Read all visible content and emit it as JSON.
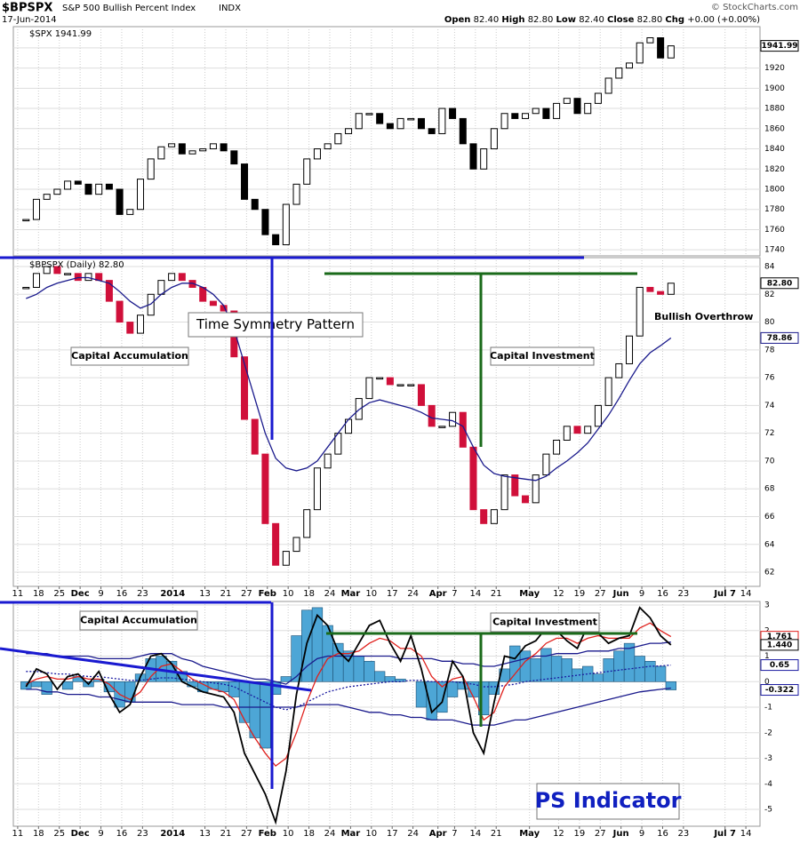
{
  "chart_data": {
    "type": "candlestick",
    "title": "$BPSPX",
    "subtitle": "S&P 500 Bullish Percent Index",
    "exchange": "INDX",
    "date": "17-Jun-2014",
    "source": "© StockCharts.com",
    "quote": [
      {
        "label": "Open",
        "value": "82.40"
      },
      {
        "label": "High",
        "value": "82.80"
      },
      {
        "label": "Low",
        "value": "82.40"
      },
      {
        "label": "Close",
        "value": "82.80"
      },
      {
        "label": "Chg",
        "value": "+0.00 (+0.00%)"
      }
    ],
    "x": [
      0.4,
      0.9,
      1.4,
      1.9,
      2.4,
      2.9,
      3.4,
      3.9,
      4.4,
      4.9,
      5.4,
      5.9,
      6.4,
      6.9,
      7.4,
      7.9,
      8.4,
      8.9,
      9.4,
      9.9,
      10.4,
      10.9,
      11.4,
      11.9,
      12.4,
      12.9,
      13.4,
      13.9,
      14.4,
      14.9,
      15.4,
      15.9,
      16.4,
      16.9,
      17.4,
      17.9,
      18.4,
      18.9,
      19.4,
      19.9,
      20.4,
      20.9,
      21.4,
      21.9,
      22.4,
      22.9,
      23.4,
      23.9,
      24.4,
      24.9,
      25.4,
      25.9,
      26.4,
      26.9,
      27.4,
      27.9,
      28.4,
      28.9,
      29.4,
      29.9,
      30.4,
      30.9,
      31.4
    ],
    "xlim": [
      -0.21,
      35.68
    ],
    "xticks": [
      {
        "value": 0,
        "label": "11"
      },
      {
        "value": 1,
        "label": "18"
      },
      {
        "value": 2,
        "label": "25"
      },
      {
        "value": 3,
        "label": "Dec"
      },
      {
        "value": 4,
        "label": "9"
      },
      {
        "value": 5,
        "label": "16"
      },
      {
        "value": 6,
        "label": "23"
      },
      {
        "value": 7.45,
        "label": "2014"
      },
      {
        "value": 9,
        "label": "13"
      },
      {
        "value": 10,
        "label": "21"
      },
      {
        "value": 11,
        "label": "27"
      },
      {
        "value": 12,
        "label": "Feb"
      },
      {
        "value": 13,
        "label": "10"
      },
      {
        "value": 14,
        "label": "18"
      },
      {
        "value": 15,
        "label": "24"
      },
      {
        "value": 16,
        "label": "Mar"
      },
      {
        "value": 17,
        "label": "10"
      },
      {
        "value": 18,
        "label": "17"
      },
      {
        "value": 19,
        "label": "24"
      },
      {
        "value": 20.2,
        "label": "Apr"
      },
      {
        "value": 21,
        "label": "7"
      },
      {
        "value": 22,
        "label": "14"
      },
      {
        "value": 23,
        "label": "21"
      },
      {
        "value": 24.6,
        "label": "May"
      },
      {
        "value": 26,
        "label": "12"
      },
      {
        "value": 27,
        "label": "19"
      },
      {
        "value": 28,
        "label": "27"
      },
      {
        "value": 29,
        "label": "Jun"
      },
      {
        "value": 30,
        "label": "9"
      },
      {
        "value": 31,
        "label": "16"
      },
      {
        "value": 32,
        "label": "23"
      },
      {
        "value": 34,
        "label": "Jul 7"
      },
      {
        "value": 35,
        "label": "14"
      }
    ],
    "panels": [
      {
        "ylim": [
          1734,
          1961
        ],
        "yticks": [
          1740,
          1760,
          1780,
          1800,
          1820,
          1840,
          1860,
          1880,
          1900,
          1920,
          1940
        ],
        "grid": true,
        "series": [
          {
            "name": "$SPX 1941.99",
            "type": "candle",
            "color": "#000000",
            "down_color": "#000000",
            "tag": true,
            "values": [
              1770,
              1790,
              1795,
              1800,
              1808,
              1805,
              1795,
              1805,
              1800,
              1775,
              1780,
              1810,
              1830,
              1842,
              1845,
              1835,
              1838,
              1840,
              1845,
              1838,
              1825,
              1790,
              1780,
              1755,
              1745,
              1785,
              1805,
              1830,
              1840,
              1845,
              1855,
              1860,
              1875,
              1875,
              1865,
              1860,
              1870,
              1870,
              1860,
              1855,
              1880,
              1870,
              1845,
              1820,
              1840,
              1860,
              1875,
              1870,
              1875,
              1880,
              1870,
              1885,
              1890,
              1875,
              1885,
              1895,
              1910,
              1920,
              1925,
              1945,
              1950,
              1930,
              1941.99
            ]
          }
        ]
      },
      {
        "ylim": [
          60.98,
          84.64
        ],
        "yticks": [
          62,
          64,
          66,
          68,
          70,
          72,
          74,
          76,
          78,
          80,
          82,
          84
        ],
        "grid": true,
        "annotations": [
          "Capital Accumulation",
          "Time Symmetry Pattern",
          "Capital Investment",
          "Bullish Overthrow"
        ],
        "series": [
          {
            "name": "$BPSPX (Daily) 82.80",
            "type": "candle",
            "color": "#000000",
            "down_color": "#d0103a",
            "tag": true,
            "tag_label": "82.80",
            "values": [
              82.5,
              83.5,
              84,
              83.5,
              83.5,
              83,
              83.5,
              83,
              81.5,
              80,
              79.2,
              80.5,
              82,
              83,
              83.5,
              83,
              82.5,
              81.5,
              81.2,
              80.8,
              77.5,
              73,
              70.5,
              65.5,
              62.5,
              63.5,
              64.5,
              66.5,
              69.5,
              70.5,
              72,
              73,
              74.5,
              76,
              76,
              75.5,
              75.5,
              75.5,
              74,
              72.5,
              72.5,
              73.5,
              71,
              66.5,
              65.5,
              66.5,
              69,
              67.5,
              67,
              69,
              70.5,
              71.5,
              72.5,
              72,
              72.5,
              74,
              76,
              77,
              79,
              82.5,
              82.2,
              82,
              82.8
            ]
          },
          {
            "type": "line",
            "color": "#1a1a8c",
            "tag": true,
            "values": [
              81.7,
              82,
              82.5,
              82.8,
              83,
              83.2,
              83.2,
              83,
              82.8,
              82.2,
              81.5,
              81,
              81.3,
              82,
              82.5,
              82.8,
              82.8,
              82.5,
              82,
              81.2,
              79.5,
              77,
              74.5,
              72,
              70.2,
              69.5,
              69.3,
              69.5,
              70,
              71,
              72,
              73,
              73.7,
              74.2,
              74.4,
              74.2,
              74,
              73.8,
              73.5,
              73.1,
              73,
              72.9,
              72.5,
              71,
              69.7,
              69.1,
              68.9,
              68.8,
              68.7,
              68.6,
              68.9,
              69.5,
              70,
              70.6,
              71.3,
              72.3,
              73.3,
              74.5,
              75.8,
              77,
              77.8,
              78.3,
              78.86
            ]
          }
        ]
      },
      {
        "ylim": [
          -5.66,
          3.14
        ],
        "yticks": [
          -5,
          -4,
          -3,
          -2,
          -1,
          0,
          1,
          2,
          3
        ],
        "grid": true,
        "annotations": [
          "Capital Accumulation",
          "Capital Investment",
          "PS Indicator"
        ],
        "series": [
          {
            "type": "bar",
            "color": "#4da6d6",
            "tag": true,
            "values": [
              -0.3,
              -0.2,
              -0.5,
              0,
              -0.3,
              0.2,
              -0.2,
              0.1,
              -0.4,
              -1.0,
              -0.8,
              0.3,
              0.9,
              1.0,
              0.8,
              0.4,
              -0.2,
              -0.4,
              -0.3,
              -0.4,
              -0.6,
              -1.6,
              -2.2,
              -2.6,
              -0.5,
              0.2,
              1.8,
              2.8,
              2.9,
              2.2,
              1.5,
              1.2,
              1.0,
              0.8,
              0.4,
              0.2,
              0.1,
              0,
              -1.0,
              -1.5,
              -1.2,
              -0.6,
              -0.3,
              -0.6,
              -1.3,
              -0.5,
              0.5,
              1.4,
              1.2,
              0.9,
              1.3,
              1.0,
              0.9,
              0.5,
              0.6,
              0.3,
              0.9,
              1.2,
              1.5,
              1.0,
              0.8,
              0.6,
              -0.322
            ]
          },
          {
            "type": "line",
            "color": "#1a1a8c",
            "values": [
              1.1,
              1.1,
              1.1,
              1.0,
              1.0,
              1.0,
              1.0,
              0.9,
              0.9,
              0.9,
              0.9,
              1.0,
              1.1,
              1.1,
              1.1,
              0.9,
              0.8,
              0.6,
              0.5,
              0.4,
              0.3,
              0.2,
              0.1,
              0.1,
              0,
              -0.1,
              0.2,
              0.6,
              0.9,
              1.0,
              1.0,
              1.0,
              1.0,
              1.0,
              1.0,
              1.0,
              0.9,
              0.9,
              0.9,
              0.9,
              0.8,
              0.8,
              0.7,
              0.7,
              0.6,
              0.6,
              0.7,
              0.8,
              0.9,
              1.0,
              1.0,
              1.1,
              1.1,
              1.1,
              1.2,
              1.2,
              1.2,
              1.3,
              1.3,
              1.4,
              1.5,
              1.5,
              1.55
            ]
          },
          {
            "type": "line",
            "color": "#1a1a8c",
            "values": [
              -0.3,
              -0.3,
              -0.4,
              -0.4,
              -0.5,
              -0.5,
              -0.5,
              -0.6,
              -0.6,
              -0.7,
              -0.8,
              -0.8,
              -0.8,
              -0.8,
              -0.8,
              -0.9,
              -0.9,
              -0.9,
              -0.9,
              -1.0,
              -1.0,
              -1.0,
              -1.0,
              -1.0,
              -1.0,
              -1.0,
              -1.0,
              -0.9,
              -0.9,
              -0.9,
              -0.9,
              -1.0,
              -1.1,
              -1.2,
              -1.2,
              -1.3,
              -1.3,
              -1.4,
              -1.4,
              -1.5,
              -1.5,
              -1.5,
              -1.6,
              -1.7,
              -1.7,
              -1.7,
              -1.6,
              -1.5,
              -1.5,
              -1.4,
              -1.3,
              -1.2,
              -1.1,
              -1.0,
              -0.9,
              -0.8,
              -0.7,
              -0.6,
              -0.5,
              -0.4,
              -0.35,
              -0.3,
              -0.25
            ]
          },
          {
            "type": "line",
            "color": "#1a1aa0",
            "dashed": true,
            "tag": true,
            "values": [
              0.4,
              0.4,
              0.35,
              0.3,
              0.3,
              0.25,
              0.2,
              0.2,
              0.15,
              0.1,
              0.05,
              0.05,
              0.1,
              0.15,
              0.15,
              0.1,
              0.05,
              0,
              -0.05,
              -0.1,
              -0.2,
              -0.4,
              -0.6,
              -0.8,
              -1.0,
              -1.1,
              -1.0,
              -0.8,
              -0.6,
              -0.4,
              -0.3,
              -0.2,
              -0.15,
              -0.1,
              -0.05,
              0,
              0,
              0.05,
              0.05,
              0,
              0,
              0,
              -0.05,
              -0.1,
              -0.2,
              -0.2,
              -0.15,
              -0.1,
              0,
              0.05,
              0.1,
              0.15,
              0.2,
              0.25,
              0.3,
              0.35,
              0.4,
              0.45,
              0.5,
              0.55,
              0.6,
              0.62,
              0.65
            ]
          },
          {
            "type": "line",
            "color": "#e0201c",
            "tag": true,
            "values": [
              -0.1,
              0.1,
              0.2,
              0.1,
              0.1,
              0.2,
              0.1,
              0.1,
              -0.1,
              -0.5,
              -0.7,
              -0.4,
              0.2,
              0.6,
              0.7,
              0.4,
              0.1,
              -0.1,
              -0.3,
              -0.4,
              -0.7,
              -1.5,
              -2.2,
              -2.8,
              -3.3,
              -3.0,
              -2.0,
              -0.8,
              0.2,
              0.9,
              1.1,
              1.1,
              1.2,
              1.5,
              1.7,
              1.6,
              1.3,
              1.3,
              1.0,
              0.2,
              -0.2,
              0.1,
              0.2,
              -0.6,
              -1.5,
              -1.2,
              -0.2,
              0.3,
              0.8,
              1.1,
              1.5,
              1.7,
              1.7,
              1.5,
              1.7,
              1.8,
              1.7,
              1.7,
              1.7,
              2.1,
              2.3,
              2.0,
              1.761
            ]
          },
          {
            "type": "line",
            "color": "#000000",
            "width": 1.8,
            "tag": true,
            "tag_label": "1.440",
            "values": [
              -0.2,
              0.5,
              0.3,
              -0.3,
              0.2,
              0.3,
              -0.1,
              0.4,
              -0.5,
              -1.2,
              -0.9,
              0.2,
              1.0,
              1.1,
              0.7,
              0,
              -0.2,
              -0.4,
              -0.5,
              -0.6,
              -1.2,
              -2.8,
              -3.6,
              -4.4,
              -5.5,
              -3.5,
              -0.5,
              1.5,
              2.6,
              2.2,
              1.2,
              0.8,
              1.5,
              2.2,
              2.4,
              1.5,
              0.8,
              1.8,
              0.5,
              -1.2,
              -0.8,
              0.8,
              0.2,
              -2.0,
              -2.8,
              -0.8,
              1.0,
              0.9,
              1.4,
              1.6,
              2.1,
              2.0,
              1.6,
              1.3,
              2.2,
              1.9,
              1.5,
              1.7,
              1.8,
              2.9,
              2.5,
              1.8,
              1.44
            ]
          }
        ]
      }
    ]
  }
}
